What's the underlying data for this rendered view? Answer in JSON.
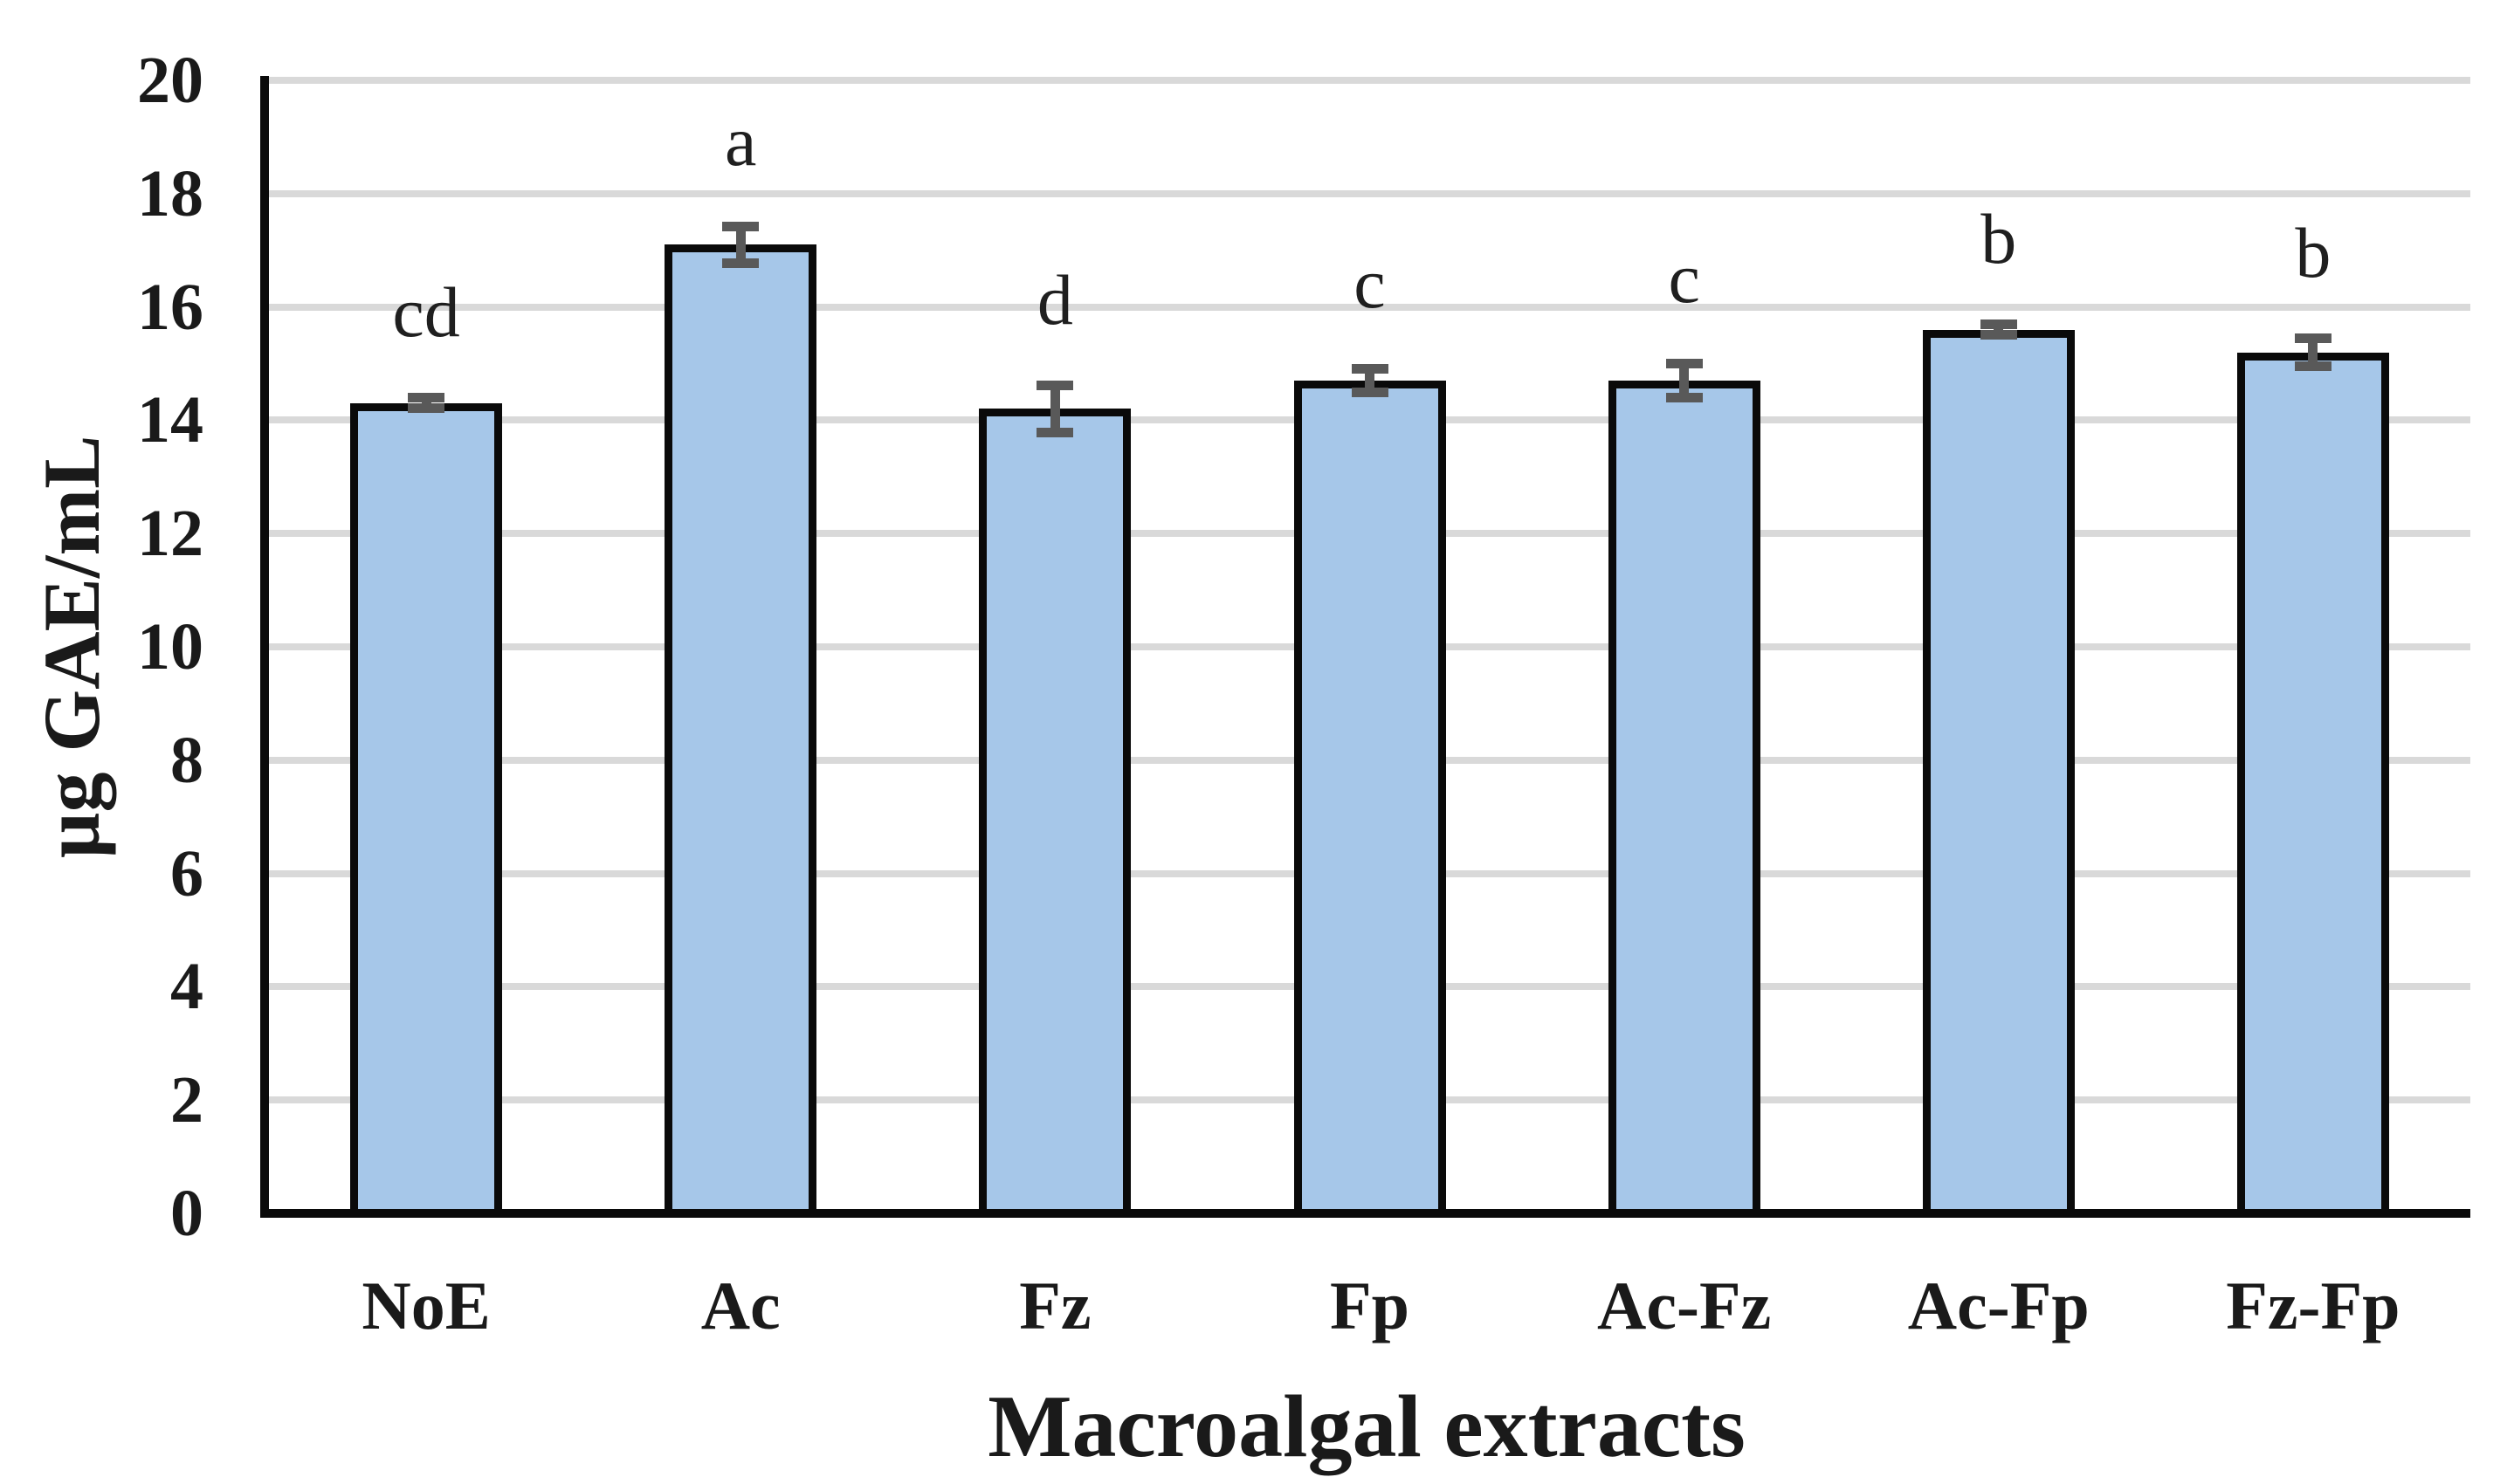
{
  "chart_data": {
    "type": "bar",
    "title": "",
    "xlabel": "Macroalgal extracts",
    "ylabel": "µg GAE/mL",
    "categories": [
      "NoE",
      "Ac",
      "Fz",
      "Fp",
      "Ac-Fz",
      "Ac-Fp",
      "Fz-Fp"
    ],
    "values": [
      14.3,
      17.1,
      14.2,
      14.7,
      14.7,
      15.6,
      15.2
    ],
    "error_bars": [
      0.1,
      0.33,
      0.43,
      0.22,
      0.31,
      0.1,
      0.25
    ],
    "significance_letters": [
      "cd",
      "a",
      "d",
      "c",
      "c",
      "b",
      "b"
    ],
    "ylim": [
      0,
      20
    ],
    "ytick_step": 2,
    "grid": true,
    "legend": false,
    "bar_fill_color": "#A6C7E9",
    "bar_border_color": "#0A0A0A",
    "error_bar_color": "#595959",
    "gridline_color": "#D9D9D9",
    "axis_color": "#0A0A0A"
  }
}
